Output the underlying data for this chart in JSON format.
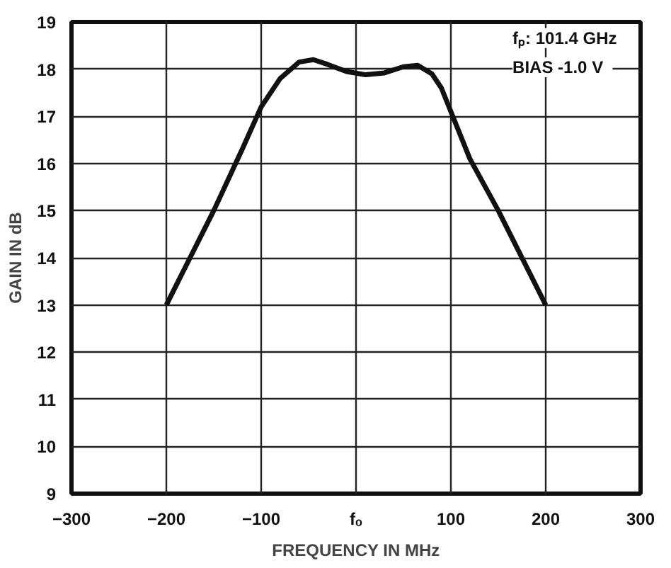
{
  "chart_data": {
    "type": "line",
    "xlabel": "FREQUENCY IN MHz",
    "ylabel": "GAIN IN dB",
    "x": [
      -200,
      -150,
      -120,
      -100,
      -80,
      -60,
      -45,
      -30,
      -10,
      10,
      30,
      50,
      65,
      80,
      90,
      100,
      120,
      150,
      200
    ],
    "series": [
      {
        "color": "#111111",
        "values": [
          13,
          15,
          16.3,
          17.2,
          17.8,
          18.15,
          18.2,
          18.1,
          17.95,
          17.88,
          17.92,
          18.05,
          18.08,
          17.9,
          17.6,
          17.1,
          16.1,
          15.0,
          13
        ]
      }
    ],
    "xlim": [
      -300,
      300
    ],
    "xticks": [
      -300,
      -200,
      -100,
      {
        "value": 0,
        "label": "fₒ"
      },
      100,
      200,
      300
    ],
    "ylim": [
      9,
      19
    ],
    "yticks": [
      9,
      10,
      11,
      12,
      13,
      14,
      15,
      16,
      17,
      18,
      19
    ],
    "grid": true,
    "marker": "none",
    "line_style": "solid",
    "annotations": [
      "fₚ:  101.4 GHz",
      "BIAS   -1.0 V"
    ]
  }
}
